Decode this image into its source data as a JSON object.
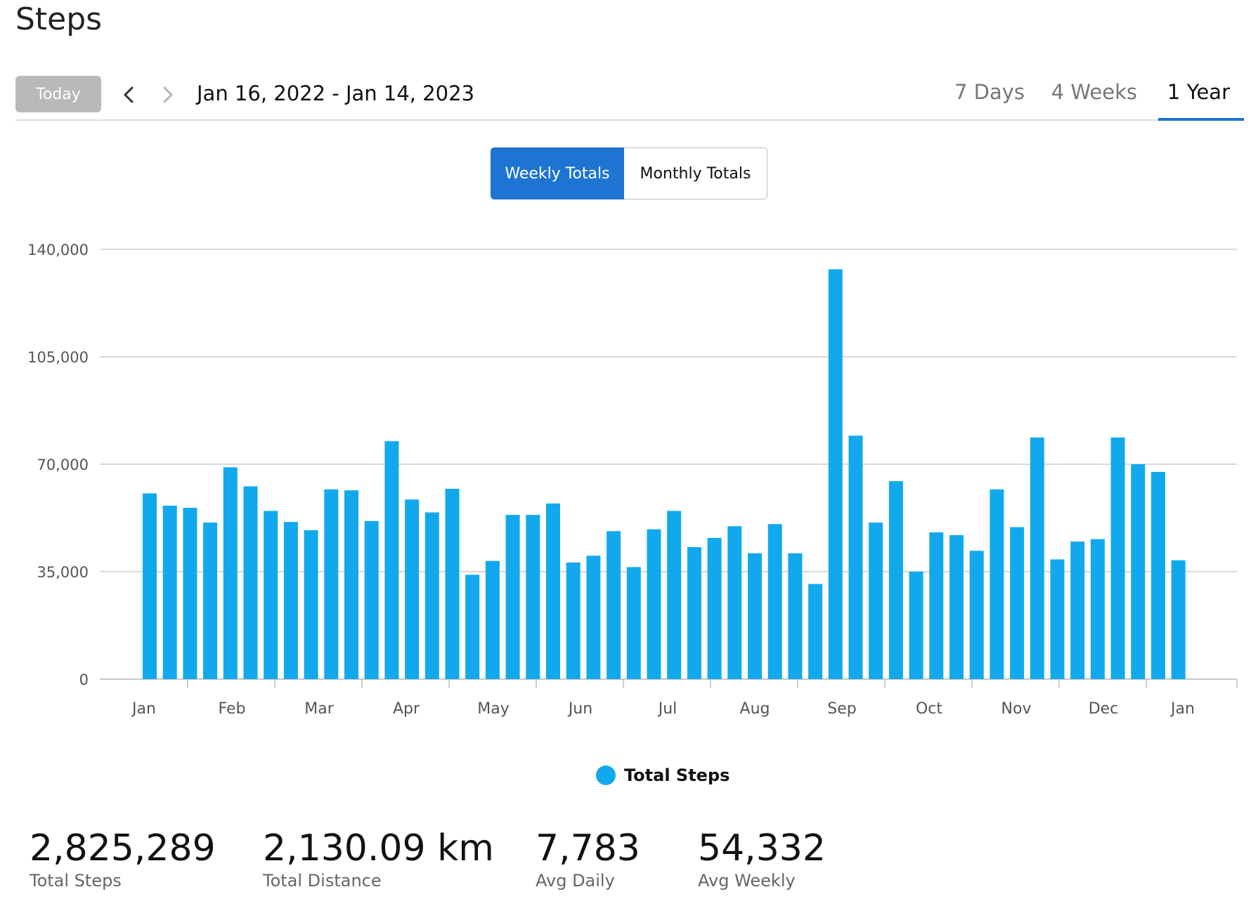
{
  "page": {
    "title": "Steps"
  },
  "toolbar": {
    "today_label": "Today",
    "date_range": "Jan 16, 2022 - Jan 14, 2023",
    "range_tabs": [
      {
        "label": "7 Days",
        "active": false
      },
      {
        "label": "4 Weeks",
        "active": false
      },
      {
        "label": "1 Year",
        "active": true
      }
    ],
    "prev_icon": "chevron-left-icon",
    "next_icon": "chevron-right-icon"
  },
  "view_toggle": {
    "weekly_label": "Weekly Totals",
    "monthly_label": "Monthly Totals",
    "selected": "Weekly Totals"
  },
  "colors": {
    "accent": "#1e74d3",
    "bar": "#12a9ec",
    "today_button": "#b9b9b9",
    "grid": "#cccccc"
  },
  "chart_data": {
    "type": "bar",
    "x_tick_labels": [
      "Jan",
      "Feb",
      "Mar",
      "Apr",
      "May",
      "Jun",
      "Jul",
      "Aug",
      "Sep",
      "Oct",
      "Nov",
      "Dec",
      "Jan"
    ],
    "ylim": [
      0,
      140000
    ],
    "y_ticks": [
      0,
      35000,
      70000,
      105000,
      140000
    ],
    "y_tick_labels": [
      "0",
      "35,000",
      "70,000",
      "105,000",
      "140,000"
    ],
    "grid": true,
    "legend": "bottom-center",
    "series": [
      {
        "name": "Total Steps",
        "values": [
          60500,
          56500,
          55800,
          51000,
          69000,
          62800,
          54800,
          51200,
          48500,
          61800,
          61500,
          51500,
          77500,
          58500,
          54300,
          62000,
          34000,
          38500,
          53500,
          53500,
          57200,
          38000,
          40200,
          48200,
          36500,
          48800,
          54800,
          43000,
          46000,
          49800,
          41000,
          50500,
          41000,
          31000,
          133500,
          79300,
          51000,
          64500,
          35000,
          47800,
          46900,
          41800,
          61800,
          49500,
          78700,
          39000,
          44800,
          45600,
          78700,
          70000,
          67500,
          38700
        ]
      }
    ]
  },
  "legend": {
    "label": "Total Steps"
  },
  "stats": [
    {
      "value": "2,825,289",
      "label": "Total Steps"
    },
    {
      "value": "2,130.09 km",
      "label": "Total Distance"
    },
    {
      "value": "7,783",
      "label": "Avg Daily"
    },
    {
      "value": "54,332",
      "label": "Avg Weekly"
    }
  ]
}
